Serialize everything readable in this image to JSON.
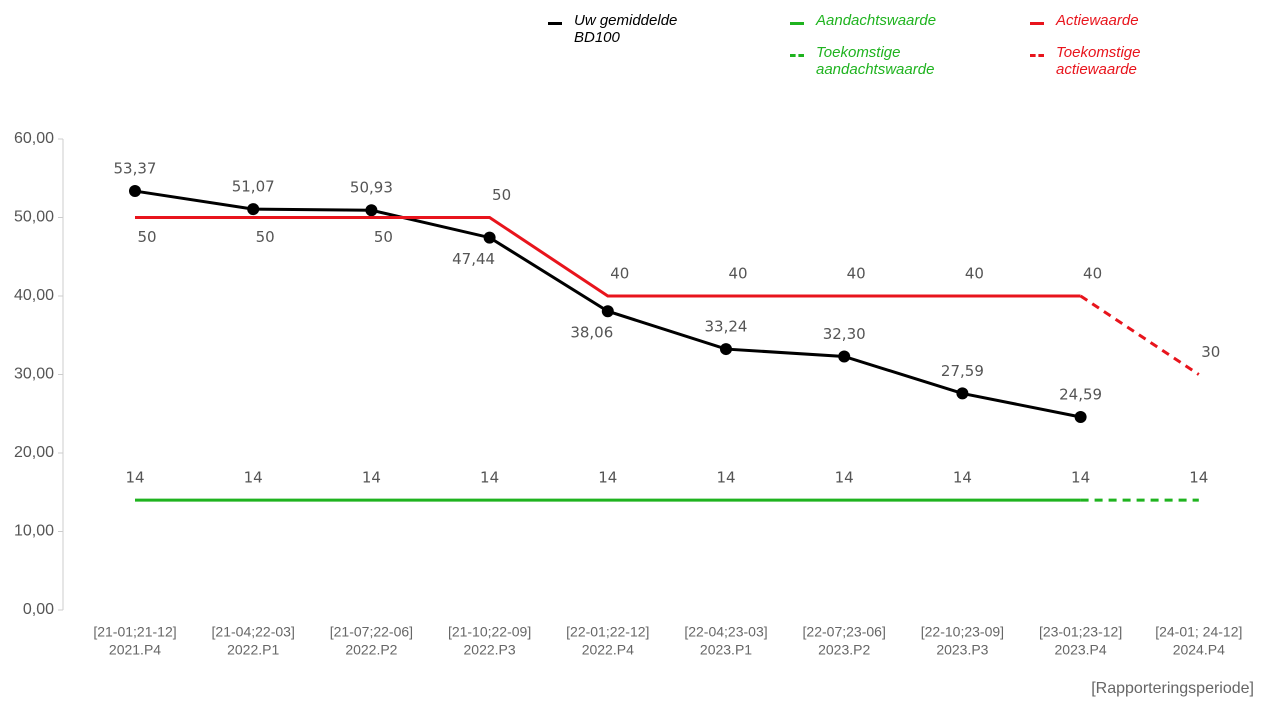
{
  "chart_data": {
    "type": "line",
    "x_label": "[Rapporteringsperiode]",
    "categories": [
      [
        "[21-01;21-12]",
        "2021.P4"
      ],
      [
        "[21-04;22-03]",
        "2022.P1"
      ],
      [
        "[21-07;22-06]",
        "2022.P2"
      ],
      [
        "[21-10;22-09]",
        "2022.P3"
      ],
      [
        "[22-01;22-12]",
        "2022.P4"
      ],
      [
        "[22-04;23-03]",
        "2023.P1"
      ],
      [
        "[22-07;23-06]",
        "2023.P2"
      ],
      [
        "[22-10;23-09]",
        "2023.P3"
      ],
      [
        "[23-01;23-12]",
        "2023.P4"
      ],
      [
        "[24-01; 24-12]",
        "2024.P4"
      ]
    ],
    "series": [
      {
        "name": "Uw gemiddelde BD100",
        "color": "#000000",
        "dash": false,
        "markers": true,
        "values": [
          53.37,
          51.07,
          50.93,
          47.44,
          38.06,
          33.24,
          32.3,
          27.59,
          24.59,
          null
        ],
        "value_labels": [
          "53,37",
          "51,07",
          "50,93",
          "47,44",
          "38,06",
          "33,24",
          "32,30",
          "27,59",
          "24,59",
          null
        ]
      },
      {
        "name": "Aandachtswaarde",
        "color": "#1fb31f",
        "dash": false,
        "markers": false,
        "values": [
          14,
          14,
          14,
          14,
          14,
          14,
          14,
          14,
          14,
          null
        ]
      },
      {
        "name": "Actiewaarde",
        "color": "#e8141c",
        "dash": false,
        "markers": false,
        "values": [
          50,
          50,
          50,
          50,
          40,
          40,
          40,
          40,
          40,
          null
        ]
      },
      {
        "name": "Toekomstige aandachtswaarde",
        "color": "#1fb31f",
        "dash": true,
        "markers": false,
        "values": [
          null,
          null,
          null,
          null,
          null,
          null,
          null,
          null,
          14,
          14
        ]
      },
      {
        "name": "Toekomstige actiewaarde",
        "color": "#e8141c",
        "dash": true,
        "markers": false,
        "values": [
          null,
          null,
          null,
          null,
          null,
          null,
          null,
          null,
          40,
          30
        ]
      }
    ],
    "ylim": [
      0,
      60
    ],
    "yticks": [
      {
        "value": 0,
        "label": "0,00"
      },
      {
        "value": 10,
        "label": "10,00"
      },
      {
        "value": 20,
        "label": "20,00"
      },
      {
        "value": 30,
        "label": "30,00"
      },
      {
        "value": 40,
        "label": "40,00"
      },
      {
        "value": 50,
        "label": "50,00"
      },
      {
        "value": 60,
        "label": "60,00"
      }
    ]
  }
}
